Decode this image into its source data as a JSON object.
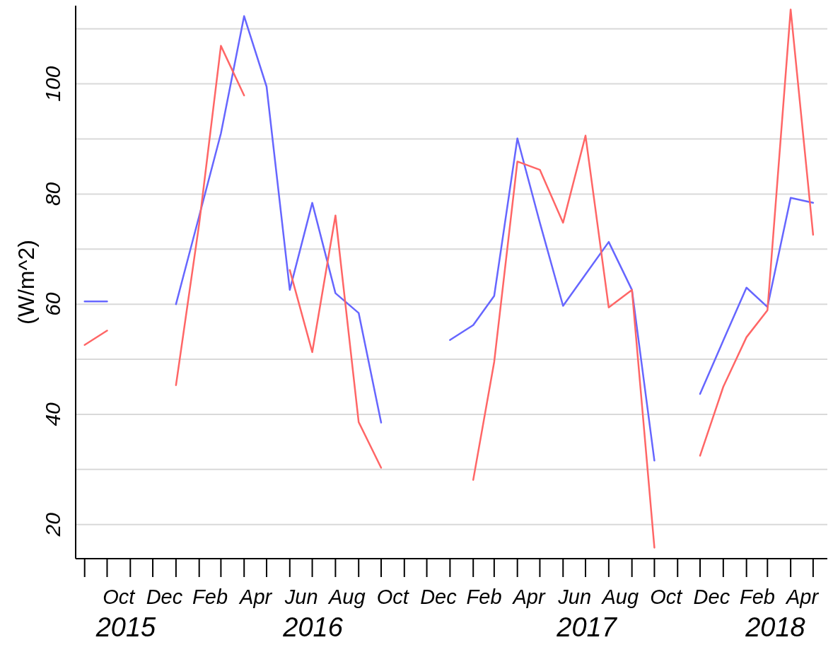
{
  "chart_data": {
    "type": "line",
    "ylabel": "(W/m^2)",
    "x": [
      "2015-09",
      "2015-10",
      "2015-11",
      "2015-12",
      "2016-01",
      "2016-02",
      "2016-03",
      "2016-04",
      "2016-05",
      "2016-06",
      "2016-07",
      "2016-08",
      "2016-09",
      "2016-10",
      "2016-11",
      "2016-12",
      "2017-01",
      "2017-02",
      "2017-03",
      "2017-04",
      "2017-05",
      "2017-06",
      "2017-07",
      "2017-08",
      "2017-09",
      "2017-10",
      "2017-11",
      "2017-12",
      "2018-01",
      "2018-02",
      "2018-03",
      "2018-04",
      "2018-05"
    ],
    "series": [
      {
        "color": "#6666ff",
        "values": [
          60.5,
          60.5,
          null,
          null,
          60,
          76,
          91,
          112.3,
          99.5,
          62.6,
          78.4,
          62,
          58.4,
          38.5,
          null,
          null,
          53.5,
          56.2,
          61.5,
          90.1,
          74.8,
          59.7,
          65.4,
          71.3,
          62.6,
          31.6,
          null,
          43.7,
          53.4,
          63,
          59.5,
          79.3,
          78.4
        ]
      },
      {
        "color": "#ff6666",
        "values": [
          52.6,
          55.2,
          null,
          null,
          45.3,
          74.6,
          106.9,
          97.9,
          null,
          66.2,
          51.3,
          76.1,
          38.6,
          30.3,
          null,
          null,
          null,
          28.1,
          49.5,
          85.9,
          84.4,
          74.8,
          90.6,
          59.4,
          62.6,
          15.8,
          null,
          32.5,
          45,
          54,
          58.9,
          113.5,
          72.6
        ]
      }
    ],
    "xlim": [
      "2015-08-20",
      "2018-05-20"
    ],
    "xticks": [
      {
        "value": "2015-10-16",
        "label": "Oct"
      },
      {
        "value": "2015-12-16",
        "label": "Dec"
      },
      {
        "value": "2016-02-15",
        "label": "Feb"
      },
      {
        "value": "2016-04-16",
        "label": "Apr"
      },
      {
        "value": "2016-06-16",
        "label": "Jun"
      },
      {
        "value": "2016-08-16",
        "label": "Aug"
      },
      {
        "value": "2016-10-16",
        "label": "Oct"
      },
      {
        "value": "2016-12-16",
        "label": "Dec"
      },
      {
        "value": "2017-02-15",
        "label": "Feb"
      },
      {
        "value": "2017-04-16",
        "label": "Apr"
      },
      {
        "value": "2017-06-16",
        "label": "Jun"
      },
      {
        "value": "2017-08-16",
        "label": "Aug"
      },
      {
        "value": "2017-10-16",
        "label": "Oct"
      },
      {
        "value": "2017-12-16",
        "label": "Dec"
      },
      {
        "value": "2018-02-15",
        "label": "Feb"
      },
      {
        "value": "2018-04-16",
        "label": "Apr"
      }
    ],
    "ylim": [
      13.8,
      114.2
    ],
    "yticks": [
      20,
      {
        "value": 30,
        "label": null
      },
      40,
      {
        "value": 50,
        "label": null
      },
      60,
      {
        "value": 70,
        "label": null
      },
      80,
      {
        "value": 90,
        "label": null
      },
      100,
      {
        "value": 110,
        "label": null
      }
    ],
    "grid": "y",
    "annotations": [
      "2015",
      "2016",
      "2017",
      "2018"
    ]
  }
}
